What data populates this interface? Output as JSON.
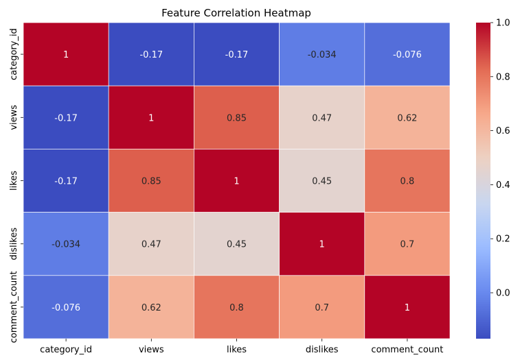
{
  "chart_data": {
    "type": "heatmap",
    "title": "Feature Correlation Heatmap",
    "x_labels": [
      "category_id",
      "views",
      "likes",
      "dislikes",
      "comment_count"
    ],
    "y_labels": [
      "category_id",
      "views",
      "likes",
      "dislikes",
      "comment_count"
    ],
    "values": [
      [
        1,
        -0.17,
        -0.17,
        -0.034,
        -0.076
      ],
      [
        -0.17,
        1,
        0.85,
        0.47,
        0.62
      ],
      [
        -0.17,
        0.85,
        1,
        0.45,
        0.8
      ],
      [
        -0.034,
        0.47,
        0.45,
        1,
        0.7
      ],
      [
        -0.076,
        0.62,
        0.8,
        0.7,
        1
      ]
    ],
    "cell_labels": [
      [
        "1",
        "-0.17",
        "-0.17",
        "-0.034",
        "-0.076"
      ],
      [
        "-0.17",
        "1",
        "0.85",
        "0.47",
        "0.62"
      ],
      [
        "-0.17",
        "0.85",
        "1",
        "0.45",
        "0.8"
      ],
      [
        "-0.034",
        "0.47",
        "0.45",
        "1",
        "0.7"
      ],
      [
        "-0.076",
        "0.62",
        "0.8",
        "0.7",
        "1"
      ]
    ],
    "colormap": "coolwarm",
    "colormap_stops": [
      "#3b4cc0",
      "#6788ee",
      "#9abbff",
      "#c9d7f0",
      "#edd1c2",
      "#f7a889",
      "#e26952",
      "#b40426"
    ],
    "vmin": -0.17,
    "vmax": 1.0,
    "colorbar": {
      "ticks": [
        0.0,
        0.2,
        0.4,
        0.6,
        0.8,
        1.0
      ],
      "tick_labels": [
        "0.0",
        "0.2",
        "0.4",
        "0.6",
        "0.8",
        "1.0"
      ]
    },
    "grid": false,
    "legend": "colorbar-right"
  }
}
